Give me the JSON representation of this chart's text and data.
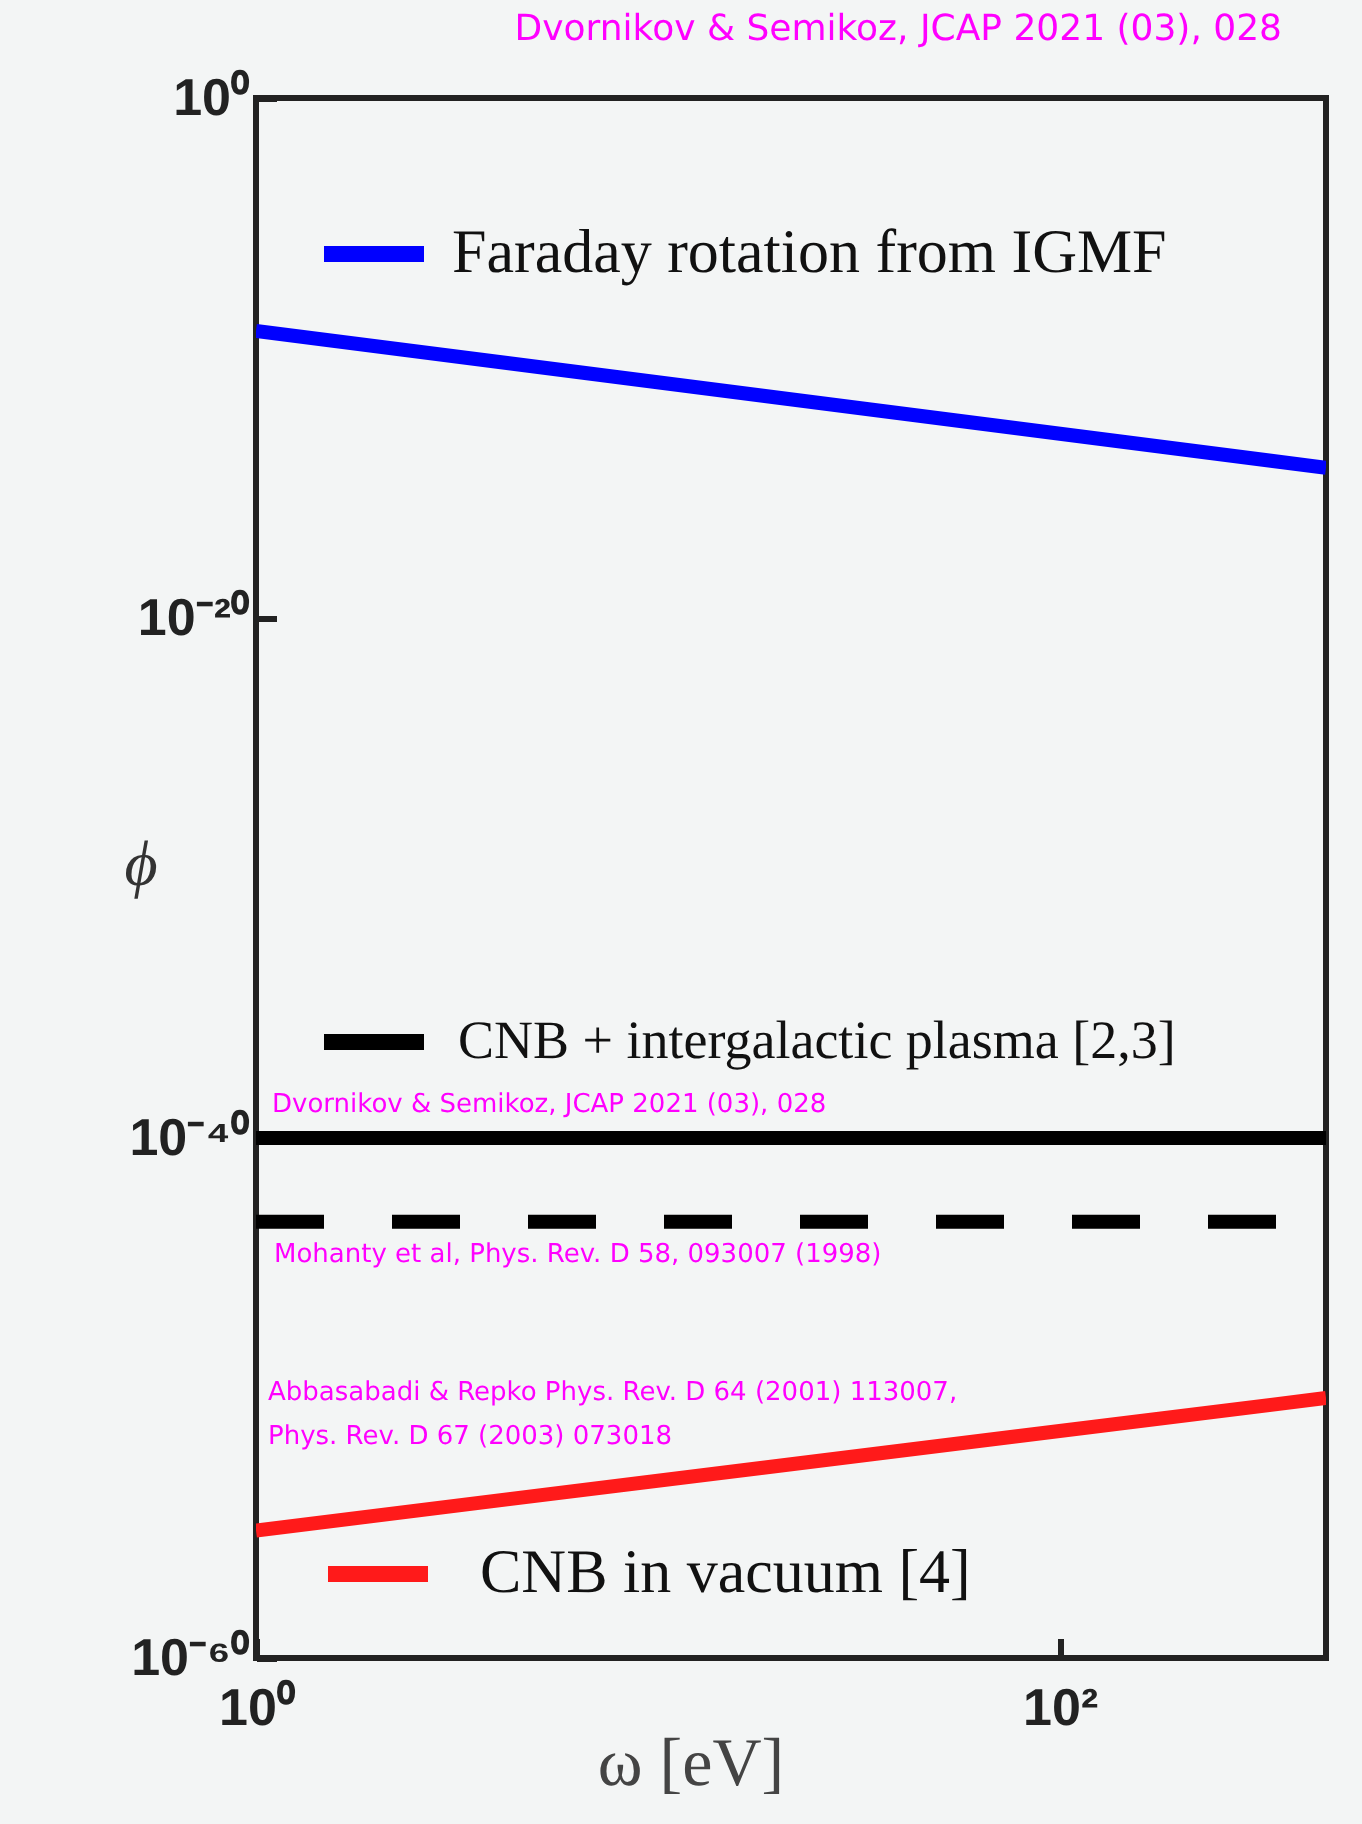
{
  "chart_data": {
    "type": "line",
    "title": "Dvornikov & Semikoz, JCAP 2021 (03), 028",
    "xlabel": "ω [eV]",
    "ylabel": "ϕ",
    "log": "xy",
    "grid": false,
    "legend": "left",
    "x": [
      1,
      460
    ],
    "xlim": [
      1,
      460
    ],
    "xticks": [
      {
        "value": 1,
        "label": "10⁰"
      },
      {
        "value": 100,
        "label": "10²"
      }
    ],
    "ylim": [
      1e-60,
      1
    ],
    "yticks": [
      {
        "value": 1e-60,
        "label": "10⁻⁶⁰"
      },
      {
        "value": 1e-40,
        "label": "10⁻⁴⁰"
      },
      {
        "value": 1e-20,
        "label": "10⁻²⁰"
      },
      {
        "value": 1,
        "label": "10⁰"
      }
    ],
    "series": [
      {
        "name": "Faraday rotation from IGMF",
        "color": "#0000ff",
        "line_style": "solid",
        "values": [
          1.1e-09,
          6e-15
        ]
      },
      {
        "name": "CNB + intergalactic plasma [2,3]",
        "color": "#000000",
        "line_style": "solid",
        "values": [
          1e-40,
          1e-40
        ]
      },
      {
        "color": "#000000",
        "line_style": "dashed",
        "values": [
          6e-44,
          6e-44
        ]
      },
      {
        "name": "CNB in vacuum [4]",
        "color": "#ff1a1a",
        "line_style": "solid",
        "values": [
          8e-56,
          1e-50
        ]
      }
    ],
    "annotations": [
      "Dvornikov & Semikoz, JCAP 2021 (03), 028",
      "Mohanty et al, Phys. Rev. D 58, 093007 (1998)",
      "Abbasabadi & Repko Phys. Rev. D 64 (2001) 113007,",
      "Phys. Rev. D 67 (2003) 073018"
    ]
  }
}
